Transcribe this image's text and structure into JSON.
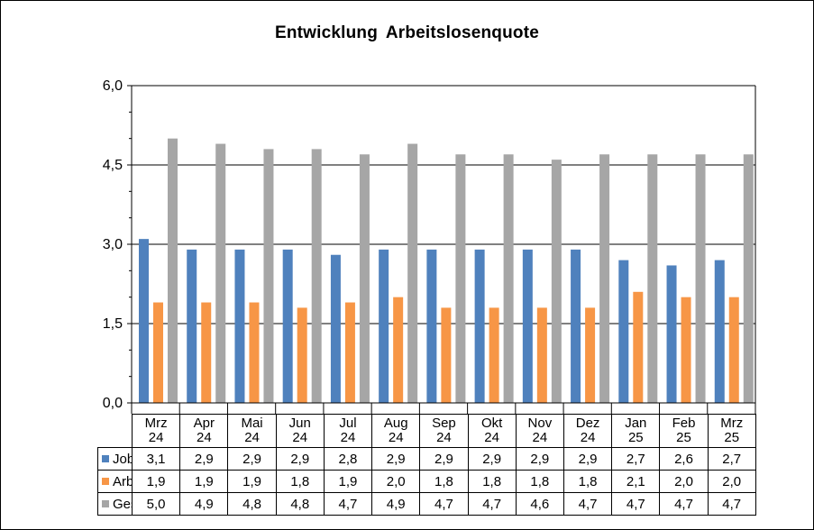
{
  "chart_data": {
    "type": "bar",
    "title": "Entwicklung  Arbeitslosenquote",
    "xlabel": "",
    "ylabel": "",
    "ylim": [
      0,
      6
    ],
    "yticks": [
      "0,0",
      "1,5",
      "3,0",
      "4,5",
      "6,0"
    ],
    "grid": true,
    "legend": "data-table",
    "categories": [
      [
        "Mrz",
        "24"
      ],
      [
        "Apr",
        "24"
      ],
      [
        "Mai",
        "24"
      ],
      [
        "Jun",
        "24"
      ],
      [
        "Jul",
        "24"
      ],
      [
        "Aug",
        "24"
      ],
      [
        "Sep",
        "24"
      ],
      [
        "Okt",
        "24"
      ],
      [
        "Nov",
        "24"
      ],
      [
        "Dez",
        "24"
      ],
      [
        "Jan",
        "25"
      ],
      [
        "Feb",
        "25"
      ],
      [
        "Mrz",
        "25"
      ]
    ],
    "series": [
      {
        "name": "Job-Center",
        "color": "#4f81bd",
        "values": [
          3.1,
          2.9,
          2.9,
          2.9,
          2.8,
          2.9,
          2.9,
          2.9,
          2.9,
          2.9,
          2.7,
          2.6,
          2.7
        ],
        "labels": [
          "3,1",
          "2,9",
          "2,9",
          "2,9",
          "2,8",
          "2,9",
          "2,9",
          "2,9",
          "2,9",
          "2,9",
          "2,7",
          "2,6",
          "2,7"
        ]
      },
      {
        "name": "Arbeitsagentur",
        "color": "#f79646",
        "values": [
          1.9,
          1.9,
          1.9,
          1.8,
          1.9,
          2.0,
          1.8,
          1.8,
          1.8,
          1.8,
          2.1,
          2.0,
          2.0
        ],
        "labels": [
          "1,9",
          "1,9",
          "1,9",
          "1,8",
          "1,9",
          "2,0",
          "1,8",
          "1,8",
          "1,8",
          "1,8",
          "2,1",
          "2,0",
          "2,0"
        ]
      },
      {
        "name": "Gesamt",
        "color": "#a6a6a6",
        "values": [
          5.0,
          4.9,
          4.8,
          4.8,
          4.7,
          4.9,
          4.7,
          4.7,
          4.6,
          4.7,
          4.7,
          4.7,
          4.7
        ],
        "labels": [
          "5,0",
          "4,9",
          "4,8",
          "4,8",
          "4,7",
          "4,9",
          "4,7",
          "4,7",
          "4,6",
          "4,7",
          "4,7",
          "4,7",
          "4,7"
        ]
      }
    ]
  }
}
